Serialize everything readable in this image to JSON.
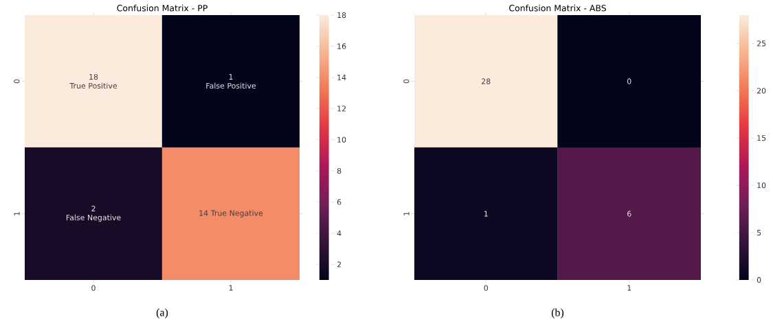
{
  "chart_data": [
    {
      "type": "heatmap",
      "title": "Confusion Matrix - PP",
      "categories": [
        "0",
        "1"
      ],
      "y_categories": [
        "0",
        "1"
      ],
      "cells": [
        [
          18,
          1
        ],
        [
          2,
          14
        ]
      ],
      "cell_labels": [
        [
          "18\nTrue Positive",
          "1\nFalse Positive"
        ],
        [
          "2\nFalse Negative",
          "14 True Negative"
        ]
      ],
      "clim": [
        1,
        18
      ],
      "cticks": [
        2,
        4,
        6,
        8,
        10,
        12,
        14,
        16,
        18
      ],
      "annotations": [
        "(a)"
      ]
    },
    {
      "type": "heatmap",
      "title": "Confusion Matrix - ABS",
      "categories": [
        "0",
        "1"
      ],
      "y_categories": [
        "0",
        "1"
      ],
      "cells": [
        [
          28,
          0
        ],
        [
          1,
          6
        ]
      ],
      "data_labels": true,
      "clim": [
        0,
        28
      ],
      "cticks": [
        0,
        5,
        10,
        15,
        20,
        25
      ],
      "annotations": [
        "(b)"
      ]
    }
  ]
}
